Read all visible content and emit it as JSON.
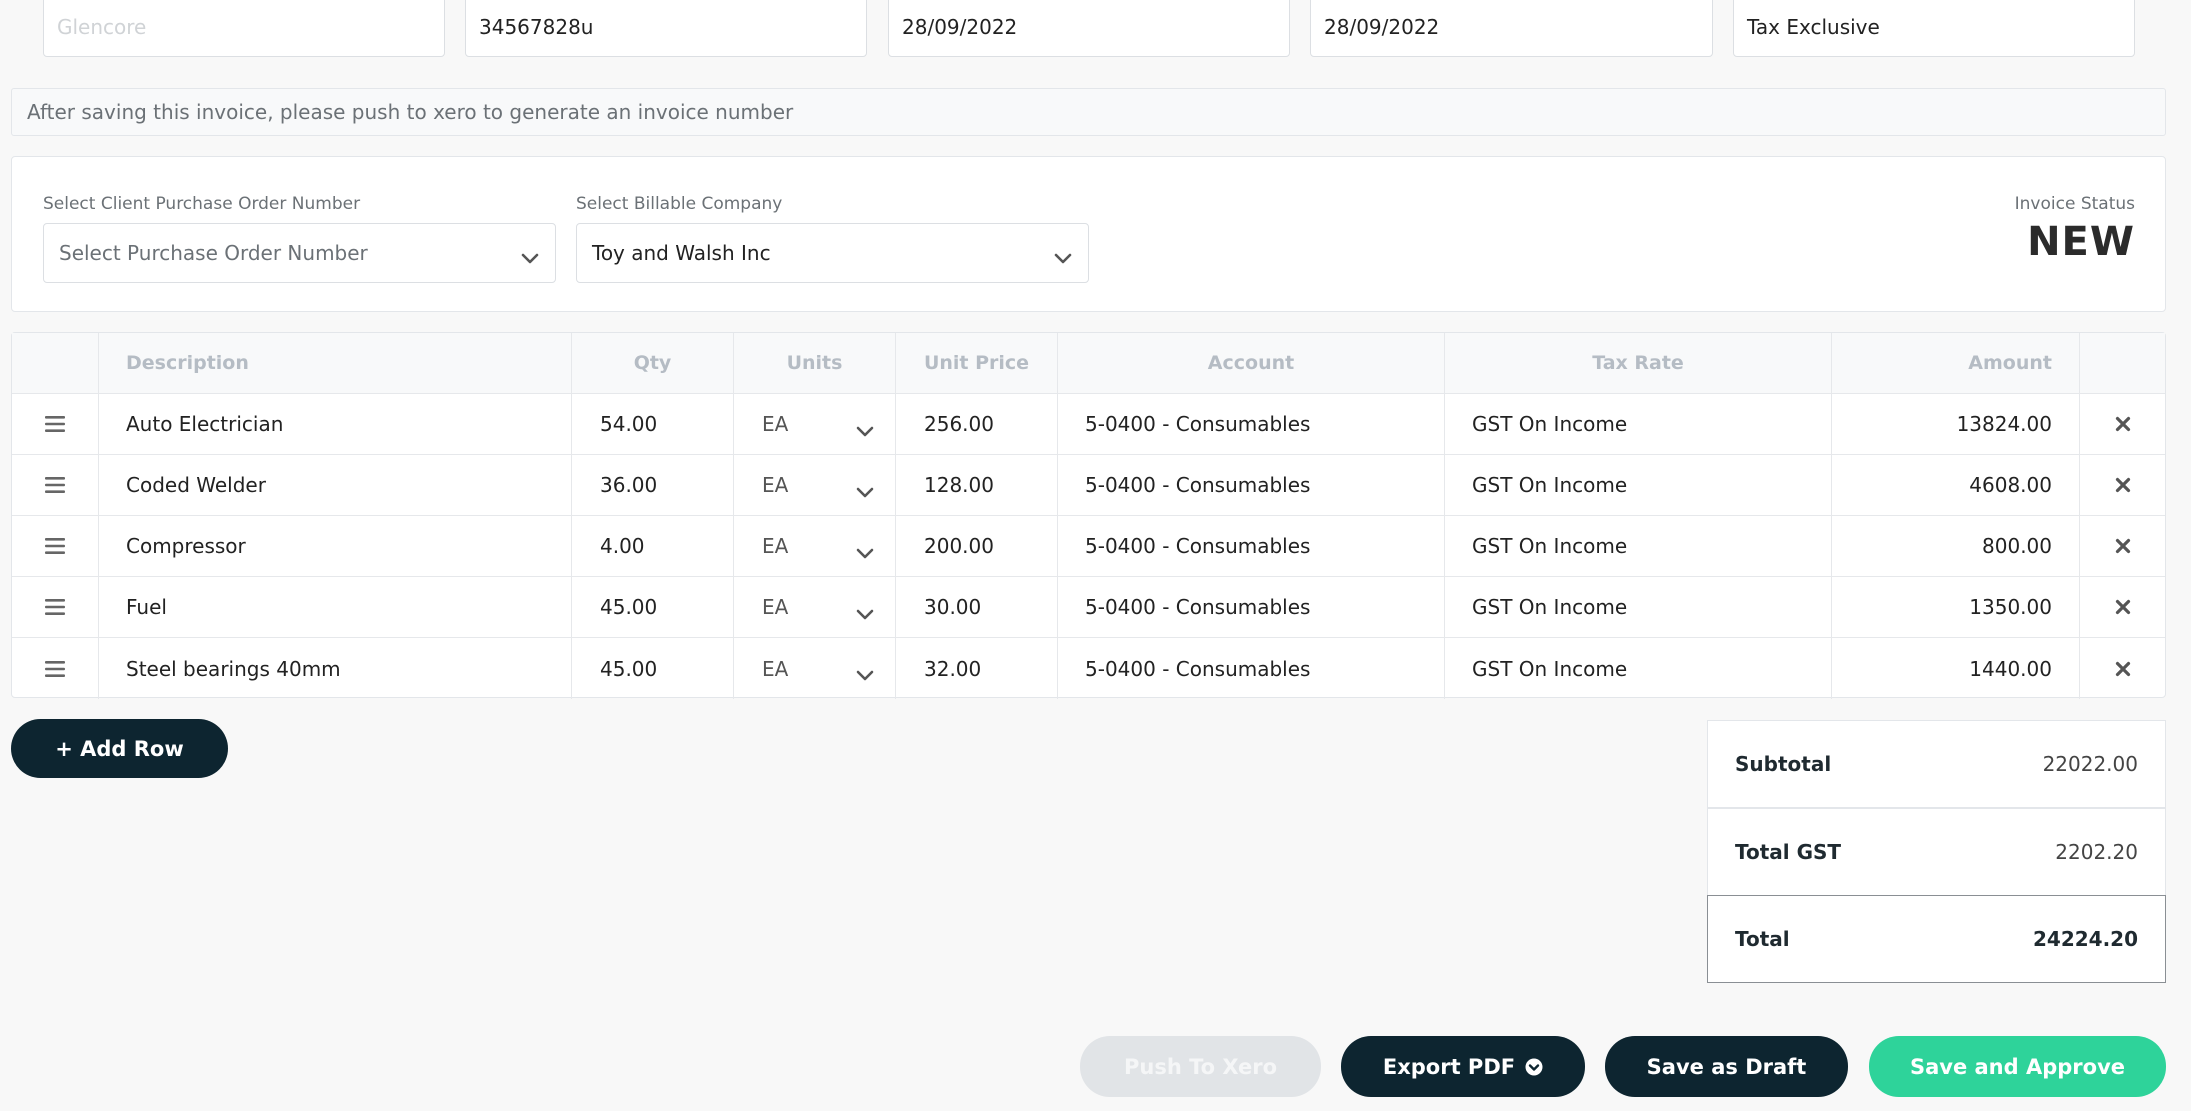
{
  "top_fields": [
    {
      "value": "",
      "placeholder": "Glencore"
    },
    {
      "value": "34567828u",
      "placeholder": ""
    },
    {
      "value": "28/09/2022",
      "placeholder": ""
    },
    {
      "value": "28/09/2022",
      "placeholder": ""
    },
    {
      "value": "Tax Exclusive",
      "placeholder": ""
    }
  ],
  "info_message": "After saving this invoice, please push to xero to generate an invoice number",
  "po_select": {
    "label": "Select Client Purchase Order Number",
    "value": "Select Purchase Order Number"
  },
  "company_select": {
    "label": "Select Billable Company",
    "value": "Toy and Walsh Inc"
  },
  "invoice_status": {
    "label": "Invoice Status",
    "value": "NEW"
  },
  "table": {
    "headers": {
      "description": "Description",
      "qty": "Qty",
      "units": "Units",
      "unit_price": "Unit Price",
      "account": "Account",
      "tax_rate": "Tax Rate",
      "amount": "Amount"
    },
    "rows": [
      {
        "description": "Auto Electrician",
        "qty": "54.00",
        "units": "EA",
        "unit_price": "256.00",
        "account": "5-0400 - Consumables",
        "tax_rate": "GST On Income",
        "amount": "13824.00"
      },
      {
        "description": "Coded Welder",
        "qty": "36.00",
        "units": "EA",
        "unit_price": "128.00",
        "account": "5-0400 - Consumables",
        "tax_rate": "GST On Income",
        "amount": "4608.00"
      },
      {
        "description": "Compressor",
        "qty": "4.00",
        "units": "EA",
        "unit_price": "200.00",
        "account": "5-0400 - Consumables",
        "tax_rate": "GST On Income",
        "amount": "800.00"
      },
      {
        "description": "Fuel",
        "qty": "45.00",
        "units": "EA",
        "unit_price": "30.00",
        "account": "5-0400 - Consumables",
        "tax_rate": "GST On Income",
        "amount": "1350.00"
      },
      {
        "description": "Steel bearings 40mm",
        "qty": "45.00",
        "units": "EA",
        "unit_price": "32.00",
        "account": "5-0400 - Consumables",
        "tax_rate": "GST On Income",
        "amount": "1440.00"
      }
    ]
  },
  "add_row_label": "+ Add Row",
  "totals": {
    "subtotal_label": "Subtotal",
    "subtotal": "22022.00",
    "gst_label": "Total GST",
    "gst": "2202.20",
    "total_label": "Total",
    "total": "24224.20"
  },
  "actions": {
    "push_to_xero": "Push To Xero",
    "export_pdf": "Export PDF",
    "save_draft": "Save as Draft",
    "save_approve": "Save and Approve"
  },
  "icons": {
    "drag_handle": "drag-handle-icon",
    "chevron": "chevron-down-icon",
    "delete": "close-icon"
  },
  "colors": {
    "primary_dark": "#0d2530",
    "accent_green": "#2ed39a",
    "disabled": "#e1e4e7"
  }
}
